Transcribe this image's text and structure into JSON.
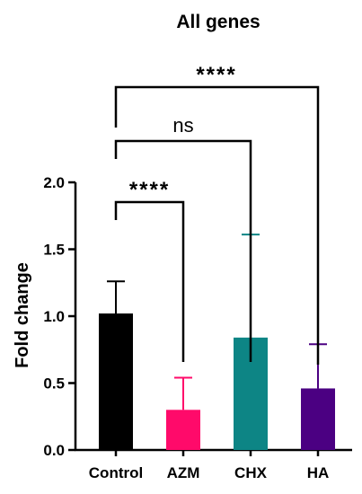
{
  "chart_data": {
    "type": "bar",
    "title": "All genes",
    "xlabel": "",
    "ylabel": "Fold change",
    "ylim": [
      0,
      2.0
    ],
    "yticks": [
      "0.0",
      "0.5",
      "1.0",
      "1.5",
      "2.0"
    ],
    "categories": [
      "Control",
      "AZM",
      "CHX",
      "HA"
    ],
    "values": [
      1.02,
      0.3,
      0.84,
      0.46
    ],
    "error_upper": [
      0.24,
      0.24,
      0.77,
      0.33
    ],
    "colors": [
      "#000000",
      "#ff0a6a",
      "#0d8585",
      "#4b0082"
    ],
    "grid": false,
    "comparisons": [
      {
        "from": "Control",
        "to": "AZM",
        "label": "****"
      },
      {
        "from": "Control",
        "to": "CHX",
        "label": "ns"
      },
      {
        "from": "Control",
        "to": "HA",
        "label": "****"
      }
    ]
  }
}
